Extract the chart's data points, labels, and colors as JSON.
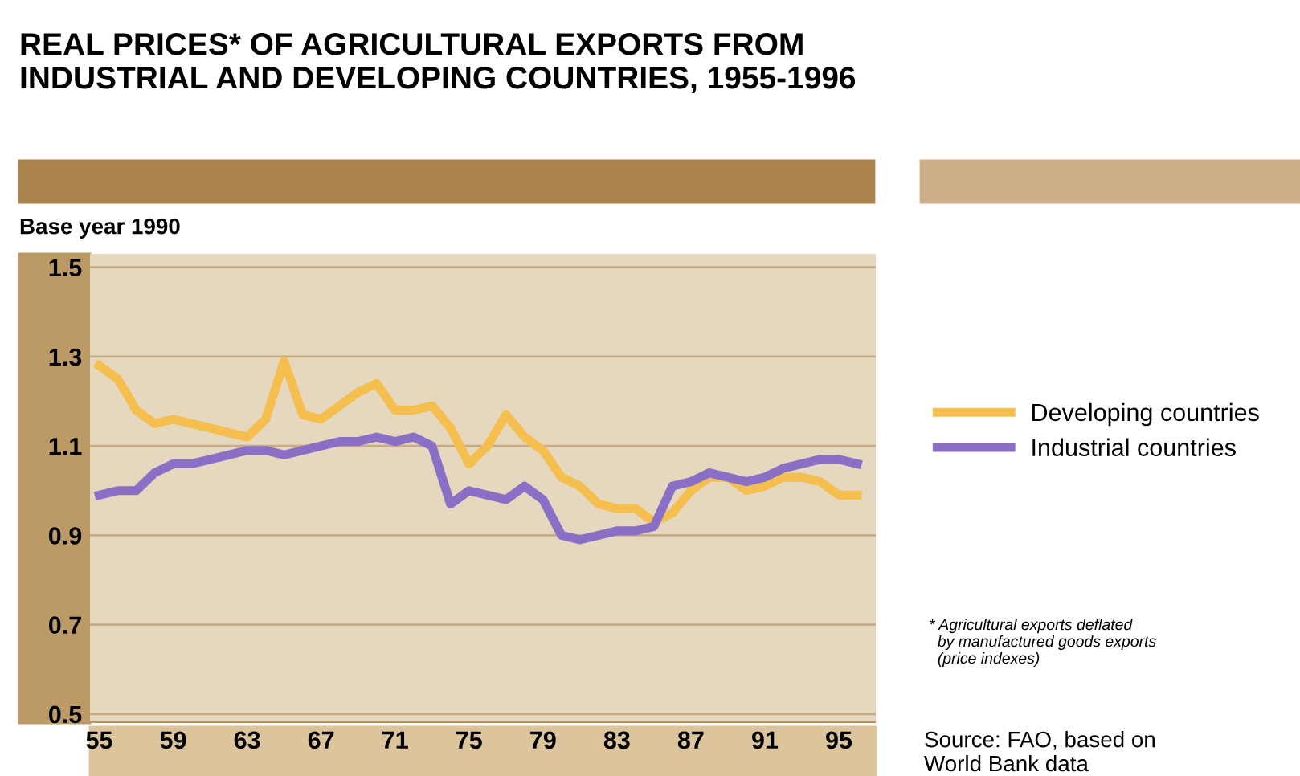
{
  "chart_data": {
    "type": "line",
    "title": "REAL PRICES* OF AGRICULTURAL EXPORTS FROM\nINDUSTRIAL AND DEVELOPING COUNTRIES, 1955-1996",
    "ylabel": "Base year 1990",
    "x": [
      1955,
      1956,
      1957,
      1958,
      1959,
      1960,
      1961,
      1962,
      1963,
      1964,
      1965,
      1966,
      1967,
      1968,
      1969,
      1970,
      1971,
      1972,
      1973,
      1974,
      1975,
      1976,
      1977,
      1978,
      1979,
      1980,
      1981,
      1982,
      1983,
      1984,
      1985,
      1986,
      1987,
      1988,
      1989,
      1990,
      1991,
      1992,
      1993,
      1994,
      1995,
      1996
    ],
    "series": [
      {
        "name": "Developing countries",
        "color": "#f5bf4f",
        "values": [
          1.28,
          1.25,
          1.18,
          1.15,
          1.16,
          1.15,
          1.14,
          1.13,
          1.12,
          1.16,
          1.29,
          1.17,
          1.16,
          1.19,
          1.22,
          1.24,
          1.18,
          1.18,
          1.19,
          1.14,
          1.06,
          1.1,
          1.17,
          1.12,
          1.09,
          1.03,
          1.01,
          0.97,
          0.96,
          0.96,
          0.93,
          0.95,
          1.0,
          1.03,
          1.03,
          1.0,
          1.01,
          1.03,
          1.03,
          1.02,
          0.99,
          0.99
        ]
      },
      {
        "name": "Industrial countries",
        "color": "#8a6fc6",
        "values": [
          0.99,
          1.0,
          1.0,
          1.04,
          1.06,
          1.06,
          1.07,
          1.08,
          1.09,
          1.09,
          1.08,
          1.09,
          1.1,
          1.11,
          1.11,
          1.12,
          1.11,
          1.12,
          1.1,
          0.97,
          1.0,
          0.99,
          0.98,
          1.01,
          0.98,
          0.9,
          0.89,
          0.9,
          0.91,
          0.91,
          0.92,
          1.01,
          1.02,
          1.04,
          1.03,
          1.02,
          1.03,
          1.05,
          1.06,
          1.07,
          1.07,
          1.06
        ]
      }
    ],
    "xlim": [
      1954.5,
      1997
    ],
    "xticks": [
      {
        "value": 1955,
        "label": "55"
      },
      {
        "value": 1959,
        "label": "59"
      },
      {
        "value": 1963,
        "label": "63"
      },
      {
        "value": 1967,
        "label": "67"
      },
      {
        "value": 1971,
        "label": "71"
      },
      {
        "value": 1975,
        "label": "75"
      },
      {
        "value": 1979,
        "label": "79"
      },
      {
        "value": 1983,
        "label": "83"
      },
      {
        "value": 1987,
        "label": "87"
      },
      {
        "value": 1991,
        "label": "91"
      },
      {
        "value": 1995,
        "label": "95"
      }
    ],
    "ylim": [
      0.48,
      1.53
    ],
    "yticks": [
      0.5,
      0.7,
      0.9,
      1.1,
      1.3,
      1.5
    ],
    "grid": "y",
    "legend": "right",
    "line_style": "solid",
    "marker": "none",
    "annotations": [
      "* Agricultural exports deflated\n  by manufactured goods exports\n  (price indexes)",
      "Source: FAO, based on\nWorld Bank data"
    ]
  }
}
